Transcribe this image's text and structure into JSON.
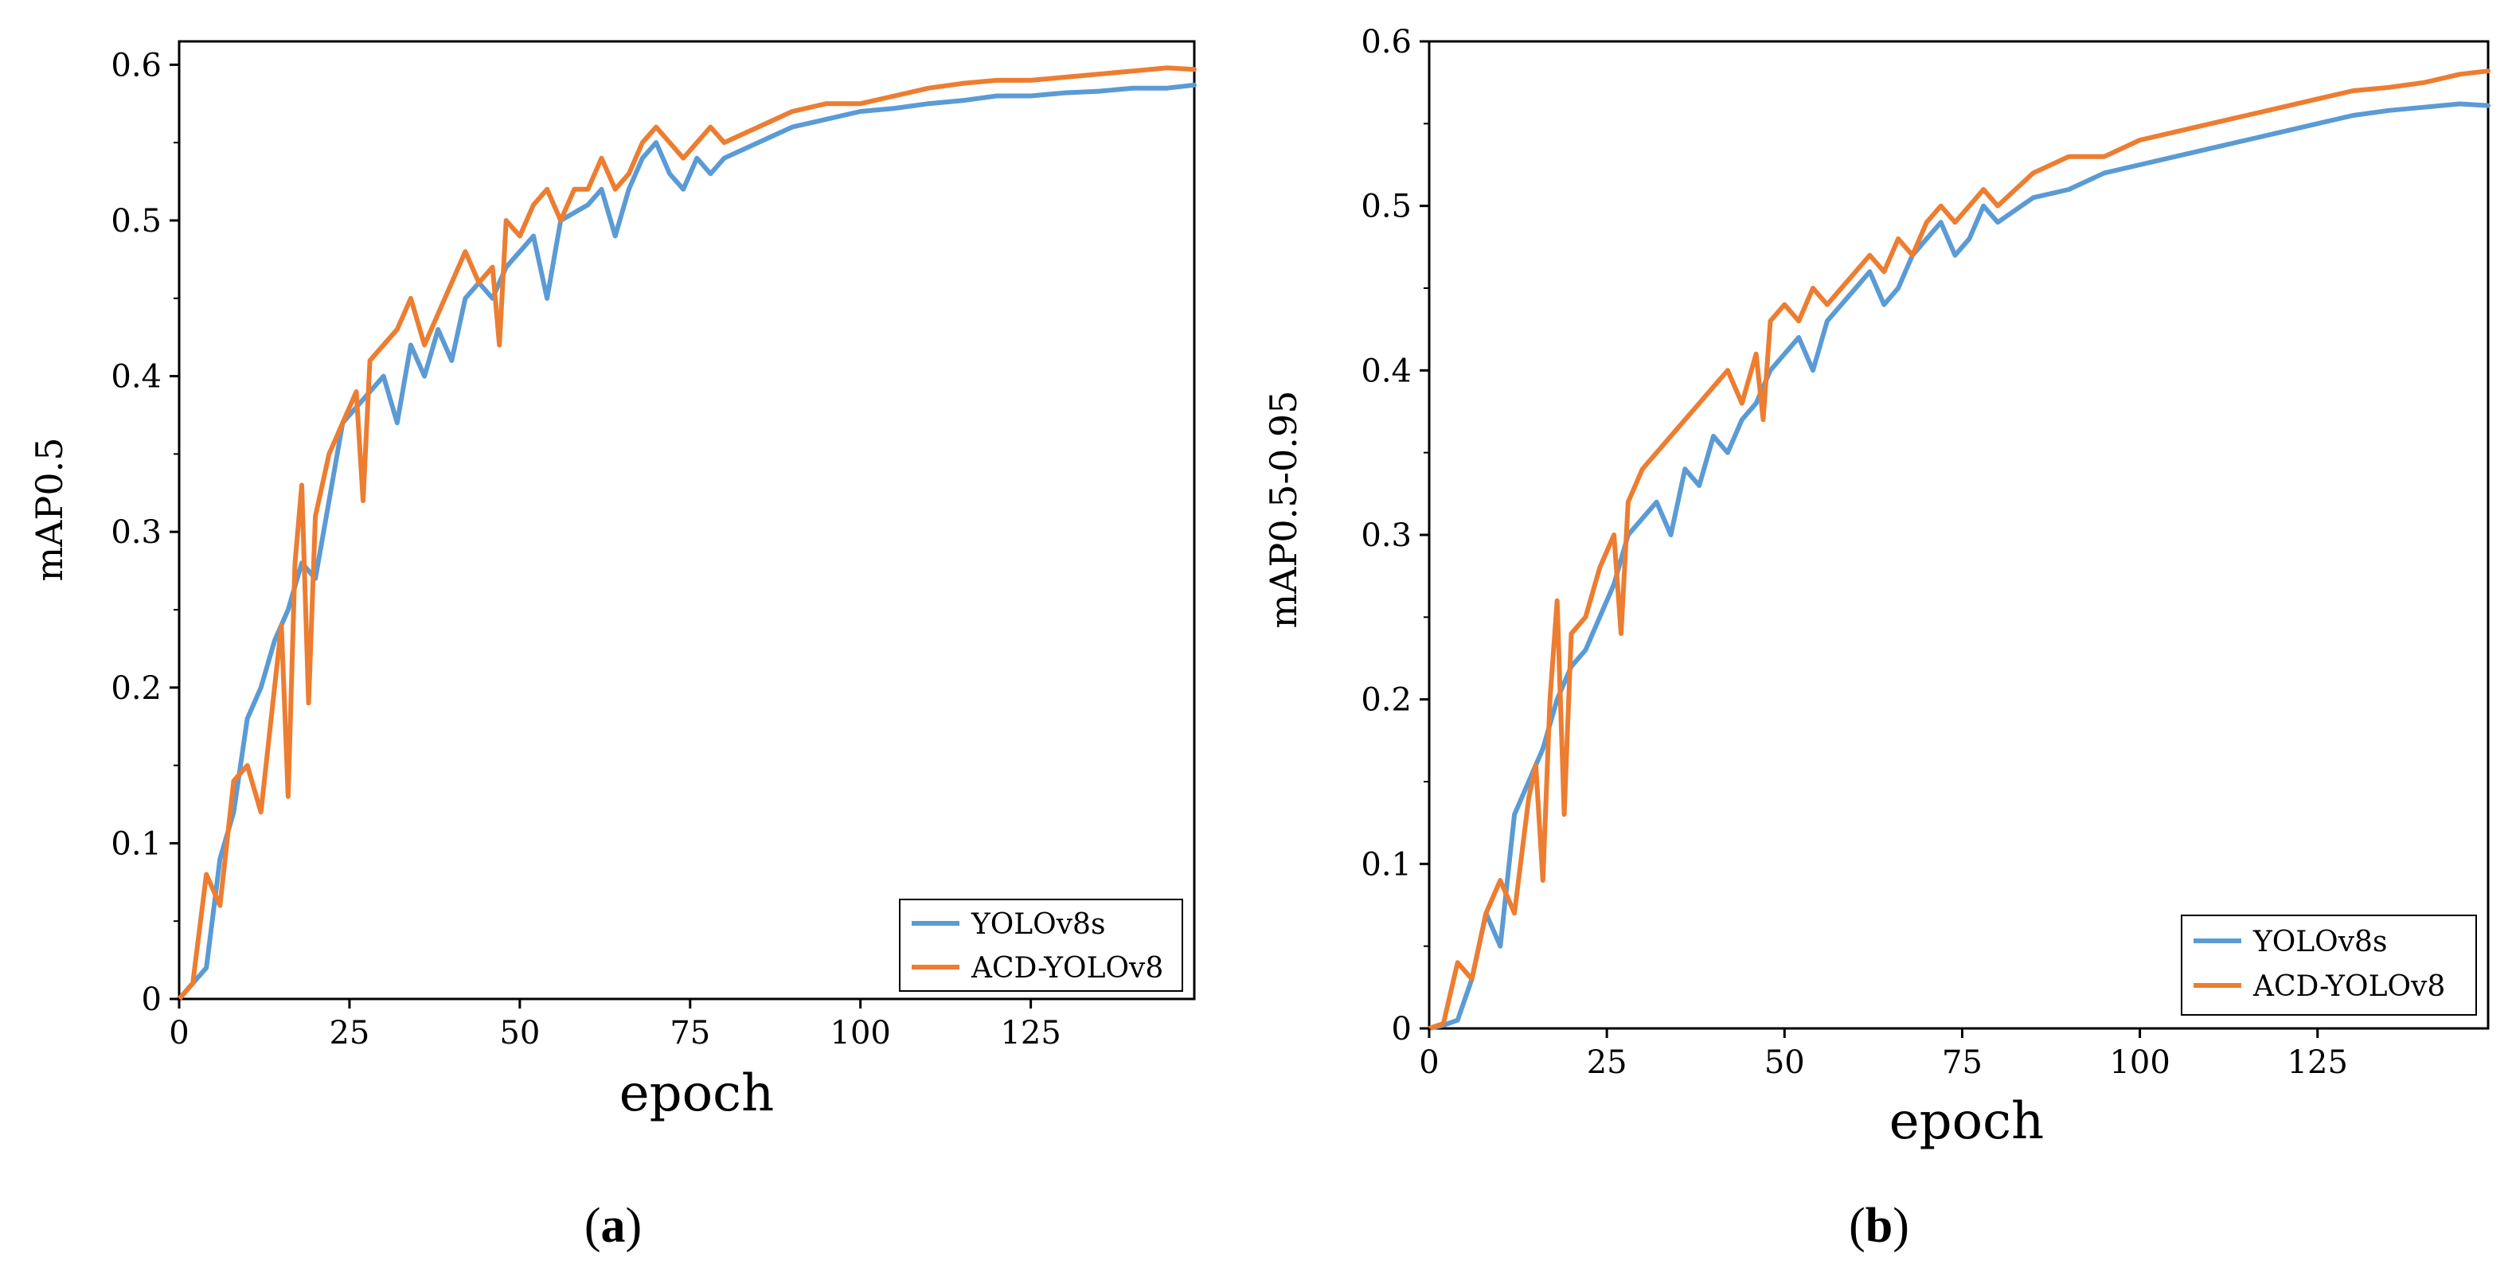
{
  "colors": {
    "yolo": "#5b9bd5",
    "acd": "#ed7d31",
    "axis": "#000000"
  },
  "chart_data": [
    {
      "id": "a",
      "type": "line",
      "caption": {
        "open": "(",
        "letter": "a",
        "close": ")"
      },
      "title": "",
      "xlabel": "epoch",
      "ylabel": "mAP0.5",
      "xlim": [
        0,
        149
      ],
      "ylim": [
        0,
        0.615
      ],
      "xticks": [
        0,
        25,
        50,
        75,
        100,
        125
      ],
      "xtick_labels": [
        "0",
        "25",
        "50",
        "75",
        "100",
        "125"
      ],
      "yticks": [
        0,
        0.1,
        0.2,
        0.3,
        0.4,
        0.5,
        0.6
      ],
      "ytick_labels": [
        "0",
        "0.1",
        "0.2",
        "0.3",
        "0.4",
        "0.5",
        "0.6"
      ],
      "legend": {
        "position": "bottom-right",
        "entries": [
          "YOLOv8s",
          "ACD-YOLOv8"
        ]
      },
      "series": [
        {
          "name": "YOLOv8s",
          "color": "#5b9bd5",
          "x": [
            0,
            2,
            4,
            6,
            8,
            10,
            12,
            14,
            16,
            18,
            20,
            22,
            24,
            26,
            28,
            30,
            32,
            34,
            36,
            38,
            40,
            42,
            44,
            46,
            48,
            50,
            52,
            54,
            56,
            60,
            62,
            64,
            66,
            68,
            70,
            72,
            74,
            76,
            78,
            80,
            85,
            90,
            95,
            100,
            105,
            110,
            115,
            120,
            125,
            130,
            135,
            140,
            145,
            149
          ],
          "values": [
            0,
            0.01,
            0.02,
            0.09,
            0.12,
            0.18,
            0.2,
            0.23,
            0.25,
            0.28,
            0.27,
            0.32,
            0.37,
            0.38,
            0.39,
            0.4,
            0.37,
            0.42,
            0.4,
            0.43,
            0.41,
            0.45,
            0.46,
            0.45,
            0.47,
            0.48,
            0.49,
            0.45,
            0.5,
            0.51,
            0.52,
            0.49,
            0.52,
            0.54,
            0.55,
            0.53,
            0.52,
            0.54,
            0.53,
            0.54,
            0.55,
            0.56,
            0.565,
            0.57,
            0.572,
            0.575,
            0.577,
            0.58,
            0.58,
            0.582,
            0.583,
            0.585,
            0.585,
            0.587
          ]
        },
        {
          "name": "ACD-YOLOv8",
          "color": "#ed7d31",
          "x": [
            0,
            2,
            4,
            6,
            8,
            10,
            12,
            14,
            15,
            16,
            17,
            18,
            19,
            20,
            22,
            24,
            26,
            27,
            28,
            30,
            32,
            34,
            36,
            38,
            40,
            42,
            44,
            46,
            47,
            48,
            50,
            52,
            54,
            56,
            58,
            60,
            62,
            64,
            66,
            68,
            70,
            72,
            74,
            76,
            78,
            80,
            85,
            90,
            95,
            100,
            105,
            110,
            115,
            120,
            125,
            130,
            135,
            140,
            145,
            149
          ],
          "values": [
            0,
            0.01,
            0.08,
            0.06,
            0.14,
            0.15,
            0.12,
            0.2,
            0.24,
            0.13,
            0.28,
            0.33,
            0.19,
            0.31,
            0.35,
            0.37,
            0.39,
            0.32,
            0.41,
            0.42,
            0.43,
            0.45,
            0.42,
            0.44,
            0.46,
            0.48,
            0.46,
            0.47,
            0.42,
            0.5,
            0.49,
            0.51,
            0.52,
            0.5,
            0.52,
            0.52,
            0.54,
            0.52,
            0.53,
            0.55,
            0.56,
            0.55,
            0.54,
            0.55,
            0.56,
            0.55,
            0.56,
            0.57,
            0.575,
            0.575,
            0.58,
            0.585,
            0.588,
            0.59,
            0.59,
            0.592,
            0.594,
            0.596,
            0.598,
            0.597
          ]
        }
      ]
    },
    {
      "id": "b",
      "type": "line",
      "caption": {
        "open": "(",
        "letter": "b",
        "close": ")"
      },
      "title": "",
      "xlabel": "epoch",
      "ylabel": "mAP0.5-0.95",
      "xlim": [
        0,
        149
      ],
      "ylim": [
        0,
        0.6
      ],
      "xticks": [
        0,
        25,
        50,
        75,
        100,
        125
      ],
      "xtick_labels": [
        "0",
        "25",
        "50",
        "75",
        "100",
        "125"
      ],
      "yticks": [
        0,
        0.1,
        0.2,
        0.3,
        0.4,
        0.5,
        0.6
      ],
      "ytick_labels": [
        "0",
        "0.1",
        "0.2",
        "0.3",
        "0.4",
        "0.5",
        "0.6"
      ],
      "legend": {
        "position": "bottom-right",
        "entries": [
          "YOLOv8s",
          "ACD-YOLOv8"
        ]
      },
      "series": [
        {
          "name": "YOLOv8s",
          "color": "#5b9bd5",
          "x": [
            0,
            2,
            4,
            6,
            8,
            10,
            12,
            14,
            16,
            18,
            20,
            22,
            24,
            26,
            28,
            30,
            32,
            34,
            36,
            38,
            40,
            42,
            44,
            46,
            48,
            50,
            52,
            54,
            56,
            58,
            60,
            62,
            64,
            66,
            68,
            70,
            72,
            74,
            76,
            78,
            80,
            85,
            90,
            95,
            100,
            105,
            110,
            115,
            120,
            125,
            130,
            135,
            140,
            145,
            149
          ],
          "values": [
            0,
            0.002,
            0.005,
            0.03,
            0.07,
            0.05,
            0.13,
            0.15,
            0.17,
            0.2,
            0.22,
            0.23,
            0.25,
            0.27,
            0.3,
            0.31,
            0.32,
            0.3,
            0.34,
            0.33,
            0.36,
            0.35,
            0.37,
            0.38,
            0.4,
            0.41,
            0.42,
            0.4,
            0.43,
            0.44,
            0.45,
            0.46,
            0.44,
            0.45,
            0.47,
            0.48,
            0.49,
            0.47,
            0.48,
            0.5,
            0.49,
            0.505,
            0.51,
            0.52,
            0.525,
            0.53,
            0.535,
            0.54,
            0.545,
            0.55,
            0.555,
            0.558,
            0.56,
            0.562,
            0.561
          ]
        },
        {
          "name": "ACD-YOLOv8",
          "color": "#ed7d31",
          "x": [
            0,
            2,
            4,
            6,
            8,
            10,
            12,
            14,
            15,
            16,
            17,
            18,
            19,
            20,
            22,
            24,
            26,
            27,
            28,
            30,
            32,
            34,
            36,
            38,
            40,
            42,
            44,
            46,
            47,
            48,
            50,
            52,
            54,
            56,
            58,
            60,
            62,
            64,
            66,
            68,
            70,
            72,
            74,
            76,
            78,
            80,
            85,
            90,
            95,
            100,
            105,
            110,
            115,
            120,
            125,
            130,
            135,
            140,
            145,
            149
          ],
          "values": [
            0,
            0.003,
            0.04,
            0.03,
            0.07,
            0.09,
            0.07,
            0.14,
            0.16,
            0.09,
            0.2,
            0.26,
            0.13,
            0.24,
            0.25,
            0.28,
            0.3,
            0.24,
            0.32,
            0.34,
            0.35,
            0.36,
            0.37,
            0.38,
            0.39,
            0.4,
            0.38,
            0.41,
            0.37,
            0.43,
            0.44,
            0.43,
            0.45,
            0.44,
            0.45,
            0.46,
            0.47,
            0.46,
            0.48,
            0.47,
            0.49,
            0.5,
            0.49,
            0.5,
            0.51,
            0.5,
            0.52,
            0.53,
            0.53,
            0.54,
            0.545,
            0.55,
            0.555,
            0.56,
            0.565,
            0.57,
            0.572,
            0.575,
            0.58,
            0.582
          ]
        }
      ]
    }
  ]
}
